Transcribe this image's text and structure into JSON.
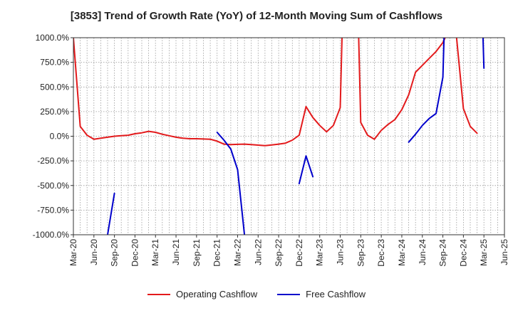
{
  "chart_data": {
    "type": "line",
    "title": "[3853]  Trend of Growth Rate (YoY) of 12-Month Moving Sum of Cashflows",
    "xlabel": "",
    "ylabel": "",
    "ylim": [
      -1000,
      1000
    ],
    "y_ticks": [
      "1000.0%",
      "750.0%",
      "500.0%",
      "250.0%",
      "0.0%",
      "-250.0%",
      "-500.0%",
      "-750.0%",
      "-1000.0%"
    ],
    "y_tick_values": [
      1000,
      750,
      500,
      250,
      0,
      -250,
      -500,
      -750,
      -1000
    ],
    "x_ticks": [
      "Mar-20",
      "Jun-20",
      "Sep-20",
      "Dec-20",
      "Mar-21",
      "Jun-21",
      "Sep-21",
      "Dec-21",
      "Mar-22",
      "Jun-22",
      "Sep-22",
      "Dec-22",
      "Mar-23",
      "Jun-23",
      "Sep-23",
      "Dec-23",
      "Mar-24",
      "Jun-24",
      "Sep-24",
      "Dec-24",
      "Mar-25",
      "Jun-25"
    ],
    "grid": true,
    "legend_position": "bottom",
    "series": [
      {
        "name": "Operating Cashflow",
        "color": "#e31a1c",
        "values": [
          [
            0,
            1000
          ],
          [
            1,
            100
          ],
          [
            2,
            10
          ],
          [
            3,
            -30
          ],
          [
            4,
            -20
          ],
          [
            5,
            -10
          ],
          [
            6,
            0
          ],
          [
            7,
            5
          ],
          [
            8,
            10
          ],
          [
            9,
            25
          ],
          [
            10,
            35
          ],
          [
            11,
            50
          ],
          [
            12,
            40
          ],
          [
            13,
            20
          ],
          [
            14,
            5
          ],
          [
            15,
            -10
          ],
          [
            16,
            -20
          ],
          [
            17,
            -25
          ],
          [
            18,
            -25
          ],
          [
            19,
            -28
          ],
          [
            20,
            -30
          ],
          [
            21,
            -50
          ],
          [
            22,
            -80
          ],
          [
            23,
            -85
          ],
          [
            24,
            -82
          ],
          [
            25,
            -80
          ],
          [
            26,
            -85
          ],
          [
            27,
            -90
          ],
          [
            28,
            -95
          ],
          [
            29,
            -88
          ],
          [
            30,
            -80
          ],
          [
            31,
            -70
          ],
          [
            32,
            -40
          ],
          [
            33,
            10
          ],
          [
            34,
            300
          ],
          [
            35,
            190
          ],
          [
            36,
            110
          ],
          [
            37,
            45
          ],
          [
            38,
            110
          ],
          [
            39,
            290
          ],
          [
            40,
            3000
          ],
          [
            41,
            3000
          ],
          [
            42,
            140
          ],
          [
            43,
            10
          ],
          [
            44,
            -30
          ],
          [
            45,
            60
          ],
          [
            46,
            120
          ],
          [
            47,
            170
          ],
          [
            48,
            270
          ],
          [
            49,
            420
          ],
          [
            50,
            650
          ],
          [
            51,
            720
          ],
          [
            52,
            790
          ],
          [
            53,
            860
          ],
          [
            54,
            950
          ],
          [
            55,
            1100
          ],
          [
            56,
            1000
          ],
          [
            57,
            280
          ],
          [
            58,
            100
          ],
          [
            59,
            30
          ]
        ]
      },
      {
        "name": "Free Cashflow",
        "color": "#0000cc",
        "values": [
          [
            5,
            -1000
          ],
          [
            6,
            -580
          ],
          [
            7,
            null
          ],
          [
            20,
            null
          ],
          [
            21,
            40
          ],
          [
            22,
            -40
          ],
          [
            23,
            -130
          ],
          [
            24,
            -340
          ],
          [
            25,
            -1000
          ],
          [
            26,
            null
          ],
          [
            32,
            null
          ],
          [
            33,
            -480
          ],
          [
            34,
            -200
          ],
          [
            35,
            -410
          ],
          [
            36,
            null
          ],
          [
            48,
            null
          ],
          [
            49,
            -60
          ],
          [
            50,
            20
          ],
          [
            51,
            110
          ],
          [
            52,
            180
          ],
          [
            53,
            230
          ],
          [
            54,
            600
          ],
          [
            55,
            3000
          ],
          [
            56,
            null
          ],
          [
            59,
            3000
          ],
          [
            60,
            690
          ]
        ]
      }
    ]
  }
}
